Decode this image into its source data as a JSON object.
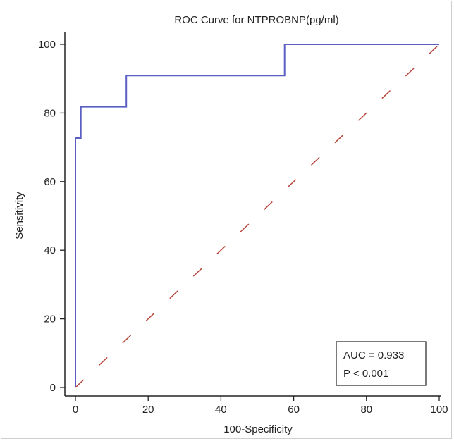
{
  "chart_data": {
    "type": "line",
    "title": "ROC Curve for NTPROBNP(pg/ml)",
    "xlabel": "100-Specificity",
    "ylabel": "Sensitivity",
    "xlim": [
      0,
      100
    ],
    "ylim": [
      0,
      100
    ],
    "xticks": [
      "0",
      "20",
      "40",
      "60",
      "80",
      "100"
    ],
    "yticks": [
      "0",
      "20",
      "40",
      "60",
      "80",
      "100"
    ],
    "grid": false,
    "series": [
      {
        "style": "solid",
        "color": "#5a5fc4",
        "x": [
          0,
          0,
          1.5,
          1.5,
          14,
          14,
          57.5,
          57.5,
          100
        ],
        "y": [
          0,
          72.7,
          72.7,
          81.8,
          81.8,
          90.9,
          90.9,
          100,
          100
        ]
      },
      {
        "style": "dashed",
        "color": "#b8453a",
        "x": [
          0,
          100
        ],
        "y": [
          0,
          100
        ]
      }
    ],
    "annotation": {
      "auc": "AUC = 0.933",
      "p": "P < 0.001",
      "placement": "bottom-right"
    }
  }
}
